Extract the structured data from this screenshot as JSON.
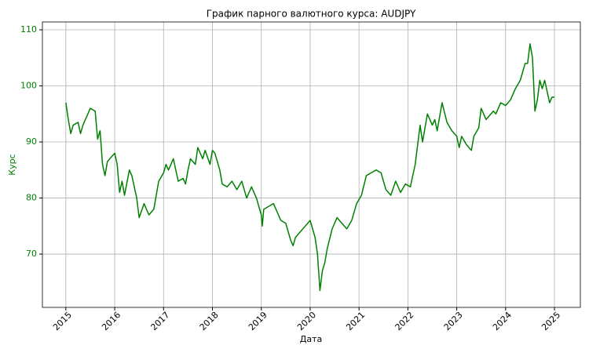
{
  "chart_data": {
    "type": "line",
    "title": "График парного валютного курса: AUDJPY",
    "xlabel": "Дата",
    "ylabel": "Курс",
    "color": "#008000",
    "x": [
      2015.0,
      2015.05,
      2015.1,
      2015.15,
      2015.25,
      2015.3,
      2015.35,
      2015.45,
      2015.5,
      2015.6,
      2015.65,
      2015.7,
      2015.75,
      2015.8,
      2015.85,
      2015.95,
      2016.0,
      2016.05,
      2016.1,
      2016.15,
      2016.2,
      2016.3,
      2016.35,
      2016.4,
      2016.45,
      2016.5,
      2016.6,
      2016.7,
      2016.8,
      2016.9,
      2017.0,
      2017.05,
      2017.1,
      2017.2,
      2017.3,
      2017.4,
      2017.45,
      2017.5,
      2017.55,
      2017.65,
      2017.7,
      2017.8,
      2017.85,
      2017.95,
      2018.0,
      2018.05,
      2018.15,
      2018.2,
      2018.3,
      2018.4,
      2018.5,
      2018.6,
      2018.7,
      2018.8,
      2018.9,
      2019.0,
      2019.02,
      2019.05,
      2019.15,
      2019.25,
      2019.35,
      2019.4,
      2019.5,
      2019.6,
      2019.65,
      2019.7,
      2019.8,
      2019.9,
      2020.0,
      2020.05,
      2020.1,
      2020.15,
      2020.2,
      2020.25,
      2020.3,
      2020.35,
      2020.45,
      2020.55,
      2020.65,
      2020.75,
      2020.85,
      2020.95,
      2021.05,
      2021.15,
      2021.25,
      2021.35,
      2021.45,
      2021.55,
      2021.65,
      2021.75,
      2021.85,
      2021.95,
      2022.05,
      2022.15,
      2022.25,
      2022.3,
      2022.4,
      2022.5,
      2022.55,
      2022.6,
      2022.7,
      2022.8,
      2022.9,
      2023.0,
      2023.05,
      2023.1,
      2023.2,
      2023.3,
      2023.35,
      2023.45,
      2023.5,
      2023.6,
      2023.7,
      2023.75,
      2023.8,
      2023.9,
      2024.0,
      2024.1,
      2024.2,
      2024.3,
      2024.4,
      2024.45,
      2024.5,
      2024.55,
      2024.6,
      2024.65,
      2024.7,
      2024.75,
      2024.8,
      2024.85,
      2024.9,
      2024.95,
      2025.0
    ],
    "values": [
      97,
      94,
      91.5,
      93,
      93.5,
      91.5,
      93,
      95,
      96,
      95.5,
      90.5,
      92,
      86,
      84,
      86.5,
      87.5,
      88,
      86,
      81,
      83,
      80.5,
      85,
      84,
      82,
      80,
      76.5,
      79,
      77,
      78,
      83,
      84.5,
      86,
      85,
      87,
      83,
      83.5,
      82.5,
      85,
      87,
      86,
      89,
      87,
      88.5,
      86,
      88.5,
      88,
      85,
      82.5,
      82,
      83,
      81.5,
      83,
      80,
      82,
      80,
      77,
      75,
      78,
      78.5,
      79,
      77,
      76,
      75.5,
      72.5,
      71.5,
      73,
      74,
      75,
      76,
      74.5,
      73,
      70,
      63.5,
      67,
      68.5,
      71,
      74.5,
      76.5,
      75.5,
      74.5,
      76,
      79,
      80.5,
      84,
      84.5,
      85,
      84.5,
      81.5,
      80.5,
      83,
      81,
      82.5,
      82,
      86,
      93,
      90,
      95,
      93,
      94,
      92,
      97,
      93.5,
      92,
      91,
      89,
      91,
      89.5,
      88.5,
      91,
      92.5,
      96,
      94,
      95,
      95.5,
      95,
      97,
      96.5,
      97.5,
      99.5,
      101,
      104,
      104,
      107.5,
      105,
      95.5,
      97.5,
      101,
      99.5,
      101,
      99,
      97,
      98,
      98
    ],
    "xlim": [
      2014.52,
      2025.53
    ],
    "xticks": [
      2015,
      2016,
      2017,
      2018,
      2019,
      2020,
      2021,
      2022,
      2023,
      2024,
      2025
    ],
    "ylim": [
      60.5,
      111.4
    ],
    "yticks": [
      70,
      80,
      90,
      100,
      110
    ],
    "grid": true
  }
}
